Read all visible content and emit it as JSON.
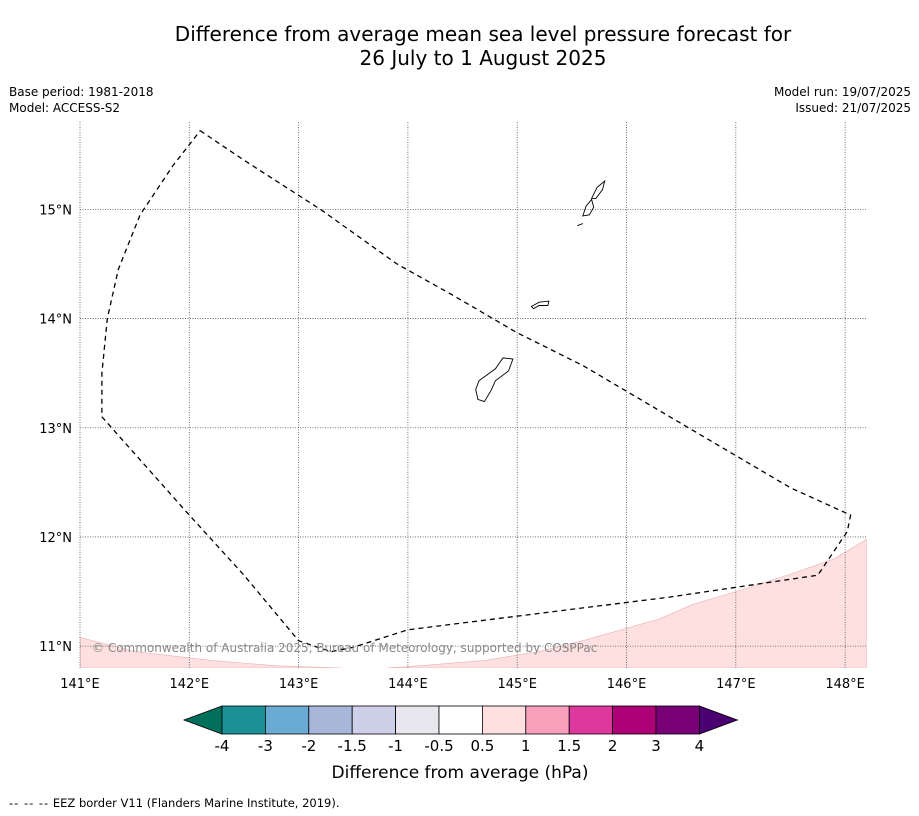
{
  "title": {
    "line1": "Difference from average mean sea level pressure forecast for",
    "line2": "26 July to 1 August 2025"
  },
  "meta": {
    "base_period": "Base period: 1981-2018",
    "model": "Model: ACCESS-S2",
    "model_run": "Model run: 19/07/2025",
    "issued": "Issued: 21/07/2025"
  },
  "map": {
    "lon_ticks": [
      "141°E",
      "142°E",
      "143°E",
      "144°E",
      "145°E",
      "146°E",
      "147°E",
      "148°E"
    ],
    "lat_ticks": [
      "15°N",
      "14°N",
      "13°N",
      "12°N",
      "11°N"
    ],
    "lon_range": [
      141.0,
      148.2
    ],
    "lat_range": [
      10.8,
      15.8
    ],
    "copyright": "© Commonwealth of Australia 2025, Bureau of Meteorology, supported by COSPPac",
    "colors": {
      "shade_0_5_to_1": "#fee0e0",
      "eez_line": "#000000",
      "coastline": "#000000",
      "grid": "#555555"
    },
    "eez_border_lonlat": [
      [
        142.1,
        15.72
      ],
      [
        142.5,
        15.45
      ],
      [
        143.2,
        15.0
      ],
      [
        143.9,
        14.5
      ],
      [
        144.4,
        14.22
      ],
      [
        145.0,
        13.87
      ],
      [
        145.6,
        13.57
      ],
      [
        146.6,
        12.98
      ],
      [
        147.5,
        12.45
      ],
      [
        148.05,
        12.2
      ],
      [
        148.02,
        12.05
      ],
      [
        147.75,
        11.65
      ],
      [
        146.4,
        11.45
      ],
      [
        144.0,
        11.15
      ],
      [
        143.5,
        10.99
      ],
      [
        143.3,
        10.95
      ],
      [
        143.2,
        10.98
      ],
      [
        143.0,
        11.05
      ],
      [
        142.5,
        11.65
      ],
      [
        142.0,
        12.2
      ],
      [
        141.6,
        12.65
      ],
      [
        141.2,
        13.1
      ],
      [
        141.2,
        13.5
      ],
      [
        141.25,
        14.0
      ],
      [
        141.35,
        14.45
      ],
      [
        141.55,
        14.95
      ],
      [
        141.85,
        15.4
      ],
      [
        142.1,
        15.72
      ]
    ],
    "shade_regions_lonlat": [
      [
        [
          141.0,
          10.8
        ],
        [
          141.0,
          11.08
        ],
        [
          141.5,
          10.95
        ],
        [
          142.2,
          10.87
        ],
        [
          142.8,
          10.82
        ],
        [
          143.4,
          10.8
        ]
      ],
      [
        [
          143.8,
          10.8
        ],
        [
          144.1,
          10.82
        ],
        [
          144.7,
          10.87
        ],
        [
          145.2,
          10.95
        ],
        [
          145.6,
          11.05
        ],
        [
          146.3,
          11.25
        ],
        [
          146.6,
          11.38
        ],
        [
          147.0,
          11.5
        ],
        [
          147.5,
          11.66
        ],
        [
          147.9,
          11.8
        ],
        [
          148.2,
          11.98
        ],
        [
          148.2,
          10.8
        ]
      ]
    ],
    "islands_lonlat": [
      [
        [
          144.65,
          13.43
        ],
        [
          144.8,
          13.54
        ],
        [
          144.87,
          13.64
        ],
        [
          144.96,
          13.63
        ],
        [
          144.92,
          13.52
        ],
        [
          144.8,
          13.43
        ],
        [
          144.76,
          13.34
        ],
        [
          144.7,
          13.24
        ],
        [
          144.64,
          13.26
        ],
        [
          144.62,
          13.35
        ],
        [
          144.65,
          13.43
        ]
      ],
      [
        [
          145.13,
          14.11
        ],
        [
          145.2,
          14.15
        ],
        [
          145.29,
          14.16
        ],
        [
          145.28,
          14.12
        ],
        [
          145.2,
          14.12
        ],
        [
          145.15,
          14.09
        ],
        [
          145.13,
          14.11
        ]
      ],
      [
        [
          145.6,
          14.94
        ],
        [
          145.63,
          15.03
        ],
        [
          145.68,
          15.09
        ],
        [
          145.7,
          15.02
        ],
        [
          145.66,
          14.95
        ],
        [
          145.6,
          14.94
        ]
      ],
      [
        [
          145.68,
          15.1
        ],
        [
          145.73,
          15.2
        ],
        [
          145.8,
          15.26
        ],
        [
          145.78,
          15.18
        ],
        [
          145.72,
          15.1
        ],
        [
          145.68,
          15.1
        ]
      ],
      [
        [
          145.55,
          14.85
        ],
        [
          145.6,
          14.87
        ]
      ]
    ]
  },
  "colorbar": {
    "label": "Difference from average (hPa)",
    "tick_labels": [
      "-4",
      "-3",
      "-2",
      "-1.5",
      "-1",
      "-0.5",
      "0.5",
      "1",
      "1.5",
      "2",
      "3",
      "4"
    ],
    "low_extend_color": "#006f5c",
    "high_extend_color": "#4a0070",
    "colors": [
      "#1b9196",
      "#6aabd4",
      "#a6b7da",
      "#cdd0e8",
      "#e8e7ee",
      "#ffffff",
      "#fee0e0",
      "#f9a0bc",
      "#de379d",
      "#ae0077",
      "#7a0077"
    ]
  },
  "footnote": {
    "dashes": "-- -- --",
    "text": "EEZ border V11 (Flanders Marine Institute, 2019)."
  }
}
